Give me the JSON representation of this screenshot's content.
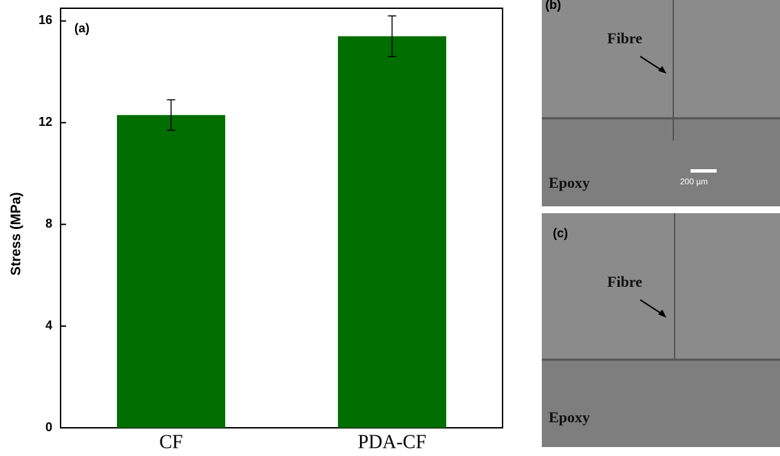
{
  "chart_data": {
    "type": "bar",
    "annotation": "(a)",
    "y_label": "Stress (MPa)",
    "categories": [
      "CF",
      "PDA-CF"
    ],
    "values": [
      12.3,
      15.4
    ],
    "errors": [
      0.6,
      0.8
    ],
    "color": "#006e00",
    "ylim": [
      0,
      16.5
    ],
    "yticks": [
      0,
      4,
      8,
      12,
      16
    ]
  },
  "images": [
    {
      "label": "(b)",
      "fibre": "Fibre",
      "matrix": "Epoxy",
      "scale_bar": "200 µm"
    },
    {
      "label": "(c)",
      "fibre": "Fibre",
      "matrix": "Epoxy"
    }
  ]
}
